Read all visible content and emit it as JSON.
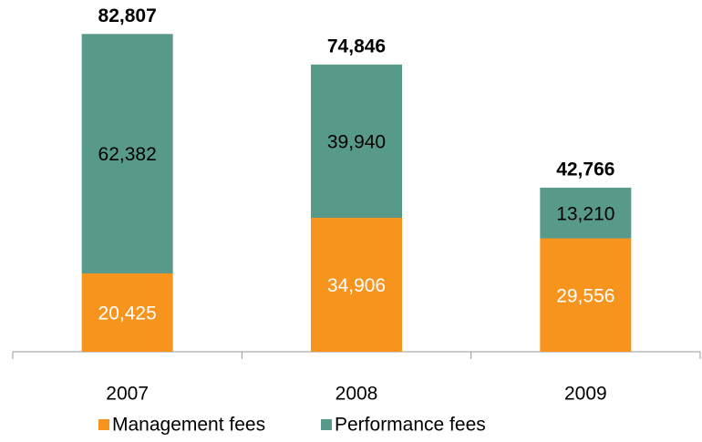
{
  "chart_data": {
    "type": "stacked_bar",
    "categories": [
      "2007",
      "2008",
      "2009"
    ],
    "series": [
      {
        "name": "Management fees",
        "color": "#f7941d",
        "label_color": "#ffffff",
        "values": [
          20425,
          34906,
          29556
        ],
        "value_labels": [
          "20,425",
          "34,906",
          "29,556"
        ]
      },
      {
        "name": "Performance fees",
        "color": "#579a8a",
        "label_color": "#000000",
        "values": [
          62382,
          39940,
          13210
        ],
        "value_labels": [
          "62,382",
          "39,940",
          "13,210"
        ]
      }
    ],
    "totals": [
      82807,
      74846,
      42766
    ],
    "total_labels": [
      "82,807",
      "74,846",
      "42,766"
    ],
    "ylim": [
      0,
      90000
    ],
    "legend": "bottom"
  }
}
